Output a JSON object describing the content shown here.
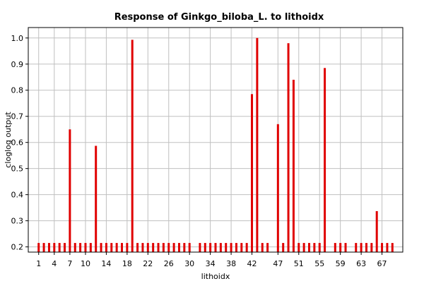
{
  "chart_data": {
    "type": "bar",
    "title": "Response of Ginkgo_biloba_L. to lithoidx",
    "xlabel": "lithoidx",
    "ylabel": "cloglog output",
    "ylim": [
      0.18,
      1.04
    ],
    "xlim": [
      -1,
      71
    ],
    "yticks": [
      "0.2",
      "0.3",
      "0.4",
      "0.5",
      "0.6",
      "0.7",
      "0.8",
      "0.9",
      "1.0"
    ],
    "xticks": [
      1,
      4,
      7,
      10,
      14,
      18,
      22,
      26,
      30,
      34,
      38,
      42,
      47,
      51,
      55,
      59,
      63,
      67
    ],
    "xtick_labels": [
      "1",
      "4",
      "7",
      "10",
      "14",
      "18",
      "22",
      "26",
      "30",
      "34",
      "38",
      "42",
      "47",
      "51",
      "55",
      "59",
      "63",
      "67"
    ],
    "grid": true,
    "bar_color": "#e00000",
    "grid_color": "#c0c0c0",
    "categories": [
      1,
      2,
      3,
      4,
      5,
      6,
      7,
      8,
      9,
      10,
      11,
      12,
      13,
      14,
      15,
      16,
      17,
      18,
      19,
      20,
      21,
      22,
      23,
      24,
      25,
      26,
      27,
      28,
      29,
      30,
      32,
      33,
      34,
      35,
      36,
      37,
      38,
      39,
      40,
      41,
      42,
      43,
      44,
      45,
      47,
      48,
      49,
      50,
      51,
      52,
      53,
      54,
      55,
      56,
      58,
      59,
      60,
      62,
      63,
      64,
      65,
      66,
      67,
      68,
      69
    ],
    "values": [
      0.215,
      0.215,
      0.215,
      0.215,
      0.215,
      0.215,
      0.65,
      0.215,
      0.215,
      0.215,
      0.215,
      0.587,
      0.215,
      0.215,
      0.215,
      0.215,
      0.215,
      0.215,
      0.993,
      0.215,
      0.215,
      0.215,
      0.215,
      0.215,
      0.215,
      0.215,
      0.215,
      0.215,
      0.215,
      0.215,
      0.215,
      0.215,
      0.215,
      0.215,
      0.215,
      0.215,
      0.215,
      0.215,
      0.215,
      0.215,
      0.785,
      1.0,
      0.215,
      0.215,
      0.67,
      0.215,
      0.98,
      0.84,
      0.215,
      0.215,
      0.215,
      0.215,
      0.215,
      0.885,
      0.215,
      0.215,
      0.215,
      0.215,
      0.215,
      0.215,
      0.215,
      0.337,
      0.215,
      0.215,
      0.215
    ]
  }
}
